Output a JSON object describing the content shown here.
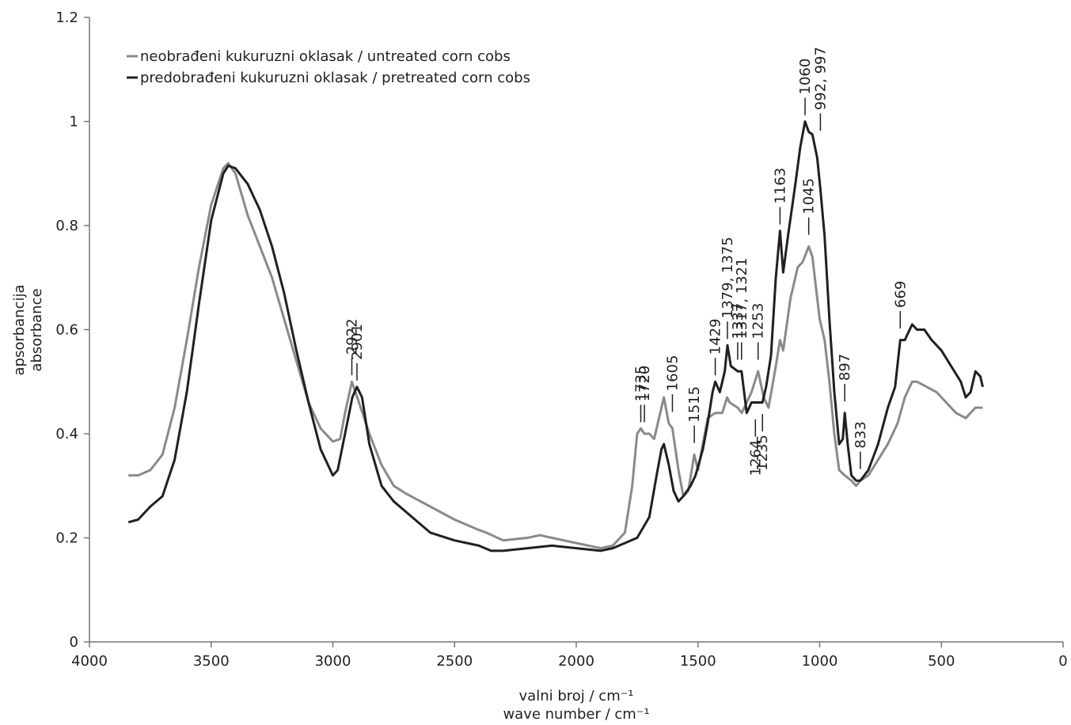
{
  "chart_data": {
    "type": "line",
    "xlabel": [
      "valni broj / cm⁻¹",
      "wave number / cm⁻¹"
    ],
    "ylabel": [
      "apsorbancija",
      "absorbance"
    ],
    "xlim": [
      4000,
      0
    ],
    "ylim": [
      0,
      1.2
    ],
    "xticks": [
      4000,
      3500,
      3000,
      2500,
      2000,
      1500,
      1000,
      500,
      0
    ],
    "yticks": [
      0,
      0.2,
      0.4,
      0.6,
      0.8,
      1,
      1.2
    ],
    "grid": false,
    "legend": "upper left",
    "series": [
      {
        "name": "neobrađeni kukuruzni oklasak / untreated corn cobs",
        "color": "#8a8a8a",
        "x": [
          3840,
          3800,
          3750,
          3700,
          3650,
          3600,
          3550,
          3500,
          3450,
          3430,
          3400,
          3350,
          3300,
          3250,
          3200,
          3150,
          3100,
          3050,
          3000,
          2970,
          2950,
          2922,
          2900,
          2850,
          2800,
          2750,
          2700,
          2600,
          2500,
          2400,
          2370,
          2300,
          2200,
          2150,
          2100,
          2000,
          1900,
          1850,
          1800,
          1770,
          1750,
          1735,
          1720,
          1700,
          1680,
          1650,
          1640,
          1620,
          1605,
          1580,
          1560,
          1540,
          1515,
          1500,
          1480,
          1460,
          1429,
          1400,
          1380,
          1370,
          1337,
          1320,
          1300,
          1280,
          1253,
          1230,
          1210,
          1180,
          1163,
          1150,
          1120,
          1090,
          1070,
          1045,
          1030,
          1000,
          980,
          960,
          940,
          920,
          897,
          870,
          850,
          833,
          800,
          760,
          720,
          680,
          650,
          620,
          600,
          560,
          520,
          480,
          440,
          400,
          360,
          330
        ],
        "values": [
          0.32,
          0.32,
          0.33,
          0.36,
          0.45,
          0.58,
          0.72,
          0.84,
          0.91,
          0.92,
          0.9,
          0.82,
          0.76,
          0.7,
          0.62,
          0.54,
          0.46,
          0.41,
          0.385,
          0.39,
          0.44,
          0.5,
          0.47,
          0.4,
          0.34,
          0.3,
          0.285,
          0.26,
          0.235,
          0.215,
          0.21,
          0.195,
          0.2,
          0.205,
          0.2,
          0.19,
          0.18,
          0.185,
          0.21,
          0.3,
          0.4,
          0.41,
          0.4,
          0.4,
          0.39,
          0.45,
          0.47,
          0.42,
          0.41,
          0.33,
          0.28,
          0.29,
          0.36,
          0.33,
          0.38,
          0.43,
          0.44,
          0.44,
          0.47,
          0.46,
          0.45,
          0.44,
          0.46,
          0.48,
          0.52,
          0.47,
          0.45,
          0.53,
          0.58,
          0.56,
          0.66,
          0.72,
          0.73,
          0.76,
          0.74,
          0.62,
          0.58,
          0.5,
          0.4,
          0.33,
          0.32,
          0.31,
          0.3,
          0.31,
          0.32,
          0.35,
          0.38,
          0.42,
          0.47,
          0.5,
          0.5,
          0.49,
          0.48,
          0.46,
          0.44,
          0.43,
          0.45,
          0.45
        ]
      },
      {
        "name": "predobrađeni kukuruzni oklasak / pretreated corn cobs",
        "color": "#231f20",
        "x": [
          3840,
          3800,
          3750,
          3700,
          3650,
          3600,
          3550,
          3500,
          3450,
          3430,
          3400,
          3350,
          3300,
          3250,
          3200,
          3150,
          3100,
          3050,
          3000,
          2980,
          2950,
          2920,
          2901,
          2880,
          2850,
          2800,
          2750,
          2700,
          2650,
          2600,
          2500,
          2400,
          2350,
          2300,
          2200,
          2100,
          2000,
          1900,
          1850,
          1800,
          1750,
          1700,
          1670,
          1650,
          1640,
          1620,
          1600,
          1580,
          1560,
          1530,
          1510,
          1480,
          1460,
          1440,
          1429,
          1410,
          1390,
          1379,
          1365,
          1337,
          1321,
          1300,
          1280,
          1264,
          1235,
          1220,
          1200,
          1180,
          1163,
          1150,
          1130,
          1100,
          1080,
          1060,
          1045,
          1030,
          1010,
          997,
          980,
          960,
          940,
          920,
          905,
          897,
          885,
          870,
          850,
          833,
          800,
          760,
          720,
          690,
          669,
          650,
          620,
          600,
          570,
          540,
          500,
          460,
          420,
          400,
          380,
          360,
          340,
          330
        ],
        "values": [
          0.23,
          0.235,
          0.26,
          0.28,
          0.35,
          0.48,
          0.65,
          0.81,
          0.9,
          0.915,
          0.91,
          0.88,
          0.83,
          0.76,
          0.67,
          0.56,
          0.46,
          0.37,
          0.32,
          0.33,
          0.4,
          0.47,
          0.49,
          0.47,
          0.38,
          0.3,
          0.27,
          0.25,
          0.23,
          0.21,
          0.195,
          0.185,
          0.175,
          0.175,
          0.18,
          0.185,
          0.18,
          0.175,
          0.18,
          0.19,
          0.2,
          0.24,
          0.32,
          0.37,
          0.38,
          0.34,
          0.29,
          0.27,
          0.28,
          0.3,
          0.32,
          0.37,
          0.42,
          0.48,
          0.5,
          0.48,
          0.52,
          0.57,
          0.53,
          0.52,
          0.52,
          0.44,
          0.46,
          0.46,
          0.46,
          0.49,
          0.55,
          0.7,
          0.79,
          0.71,
          0.78,
          0.88,
          0.95,
          1.0,
          0.98,
          0.975,
          0.93,
          0.87,
          0.78,
          0.62,
          0.48,
          0.38,
          0.39,
          0.44,
          0.38,
          0.32,
          0.31,
          0.31,
          0.33,
          0.38,
          0.45,
          0.49,
          0.58,
          0.58,
          0.61,
          0.6,
          0.6,
          0.58,
          0.56,
          0.53,
          0.5,
          0.47,
          0.48,
          0.52,
          0.51,
          0.49
        ]
      }
    ],
    "annotations": [
      {
        "text": "2922",
        "x": 2922,
        "y": 0.5,
        "side": "above"
      },
      {
        "text": "2901",
        "x": 2901,
        "y": 0.49,
        "side": "above"
      },
      {
        "text": "1720",
        "x": 1720,
        "y": 0.41,
        "side": "above"
      },
      {
        "text": "1735",
        "x": 1735,
        "y": 0.41,
        "side": "above"
      },
      {
        "text": "1605",
        "x": 1605,
        "y": 0.43,
        "side": "above"
      },
      {
        "text": "1515",
        "x": 1515,
        "y": 0.37,
        "side": "above"
      },
      {
        "text": "1429",
        "x": 1429,
        "y": 0.5,
        "side": "above"
      },
      {
        "text": "1379, 1375",
        "x": 1379,
        "y": 0.57,
        "side": "above"
      },
      {
        "text": "1337",
        "x": 1337,
        "y": 0.53,
        "side": "above"
      },
      {
        "text": "1317, 1321",
        "x": 1321,
        "y": 0.53,
        "side": "above"
      },
      {
        "text": "1253",
        "x": 1253,
        "y": 0.53,
        "side": "above"
      },
      {
        "text": "1163",
        "x": 1163,
        "y": 0.79,
        "side": "above"
      },
      {
        "text": "1060",
        "x": 1060,
        "y": 1.0,
        "side": "above"
      },
      {
        "text": "992, 997",
        "x": 997,
        "y": 0.97,
        "side": "above"
      },
      {
        "text": "1045",
        "x": 1045,
        "y": 0.77,
        "side": "above"
      },
      {
        "text": "669",
        "x": 669,
        "y": 0.59,
        "side": "above"
      },
      {
        "text": "897",
        "x": 897,
        "y": 0.45,
        "side": "above"
      },
      {
        "text": "833",
        "x": 833,
        "y": 0.32,
        "side": "above"
      },
      {
        "text": "1235",
        "x": 1235,
        "y": 0.45,
        "side": "below"
      },
      {
        "text": "1264",
        "x": 1264,
        "y": 0.44,
        "side": "below"
      }
    ]
  }
}
